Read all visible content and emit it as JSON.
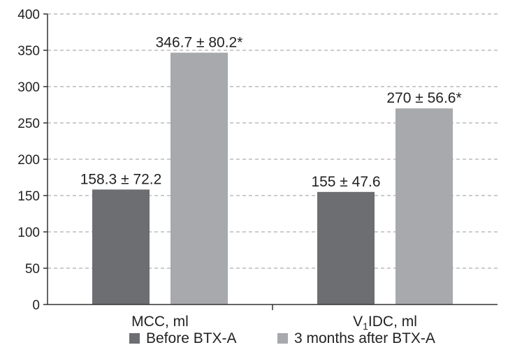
{
  "chart_data": {
    "type": "bar",
    "categories": [
      "MCC, ml",
      "V1IDC, ml"
    ],
    "category_labels": [
      {
        "main": "MCC, ml",
        "pre": "",
        "sub": "",
        "post": ""
      },
      {
        "main": "",
        "pre": "V",
        "sub": "1",
        "post": "IDC, ml"
      }
    ],
    "series": [
      {
        "name": "Before BTX-A",
        "values": [
          158.3,
          155
        ],
        "labels": [
          "158.3 ± 72.2",
          "155 ± 47.6"
        ],
        "color": "#6d6e71"
      },
      {
        "name": "3 months after BTX-A",
        "values": [
          346.7,
          270
        ],
        "labels": [
          "346.7 ± 80.2*",
          "270 ± 56.6*"
        ],
        "color": "#a7a9ac"
      }
    ],
    "ylim": [
      0,
      400
    ],
    "yticks": [
      0,
      50,
      100,
      150,
      200,
      250,
      300,
      350,
      400
    ],
    "grid": true,
    "legend_position": "bottom"
  }
}
